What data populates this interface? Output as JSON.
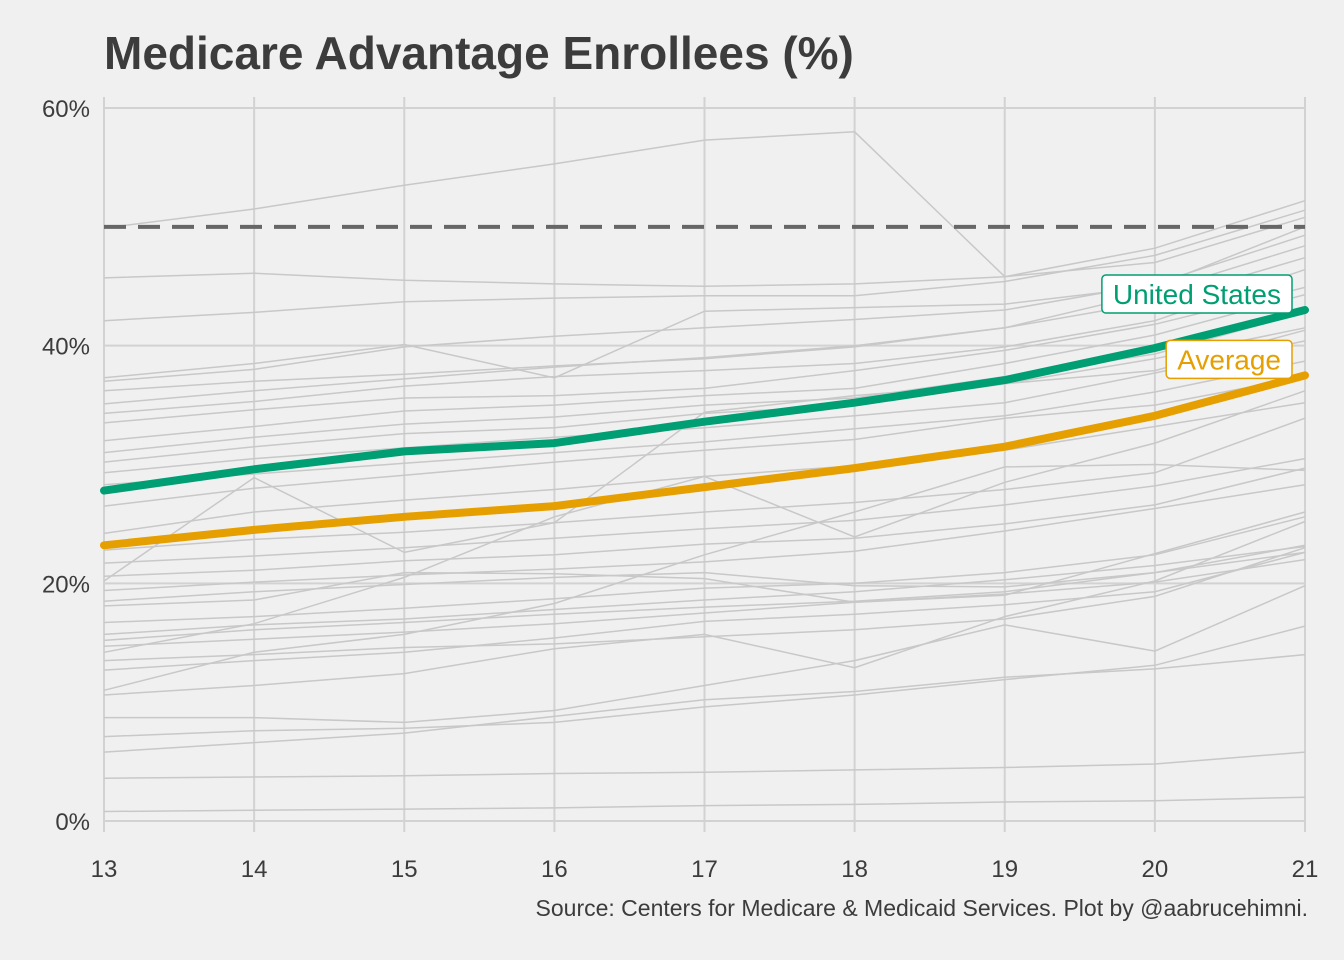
{
  "chart_data": {
    "type": "line",
    "title": "Medicare Advantage Enrollees (%)",
    "source": "Source: Centers for Medicare & Medicaid Services. Plot by @aabrucehimni.",
    "xlabel": "",
    "ylabel": "",
    "x": [
      13,
      14,
      15,
      16,
      17,
      18,
      19,
      20,
      21
    ],
    "x_tick_labels": [
      "13",
      "14",
      "15",
      "16",
      "17",
      "18",
      "19",
      "20",
      "21"
    ],
    "y_ticks": [
      0,
      20,
      40,
      60
    ],
    "y_tick_labels": [
      "0%",
      "20%",
      "40%",
      "60%"
    ],
    "xlim": [
      13,
      21
    ],
    "ylim": [
      0,
      60
    ],
    "grid": true,
    "reference_line": {
      "y": 50,
      "style": "dashed",
      "color": "#666666"
    },
    "highlight_series": [
      {
        "name": "United States",
        "color": "#009e73",
        "values": [
          27.8,
          29.6,
          31.1,
          31.8,
          33.6,
          35.2,
          37.1,
          39.8,
          43.0
        ]
      },
      {
        "name": "Average",
        "color": "#e69f00",
        "values": [
          23.2,
          24.5,
          25.6,
          26.5,
          28.1,
          29.7,
          31.5,
          34.1,
          37.5
        ]
      }
    ],
    "background_series_color": "#c8c8c8",
    "background_series": [
      [
        49.9,
        51.5,
        53.5,
        55.3,
        57.3,
        58.0,
        45.8,
        48.2,
        52.2
      ],
      [
        45.7,
        46.1,
        45.5,
        45.2,
        45.0,
        45.2,
        45.8,
        47.0,
        50.8
      ],
      [
        42.1,
        42.8,
        43.7,
        44.0,
        44.2,
        44.2,
        45.4,
        47.6,
        51.4
      ],
      [
        37.3,
        38.5,
        40.1,
        37.3,
        42.9,
        43.2,
        43.5,
        45.0,
        50.0
      ],
      [
        37.0,
        38.0,
        39.9,
        40.8,
        41.5,
        42.2,
        43.0,
        45.2,
        49.3
      ],
      [
        36.2,
        37.0,
        37.6,
        38.3,
        38.9,
        39.9,
        41.5,
        44.5,
        48.4
      ],
      [
        35.1,
        36.2,
        37.2,
        38.2,
        39.0,
        40.0,
        41.5,
        43.7,
        47.4
      ],
      [
        34.3,
        35.3,
        36.6,
        37.4,
        37.9,
        38.5,
        39.9,
        42.1,
        46.4
      ],
      [
        33.5,
        34.6,
        35.6,
        35.8,
        36.4,
        37.9,
        39.6,
        41.8,
        44.9
      ],
      [
        32.0,
        33.2,
        34.5,
        35.0,
        35.8,
        36.4,
        38.5,
        40.9,
        44.3
      ],
      [
        31.0,
        32.3,
        33.4,
        34.0,
        35.0,
        35.6,
        37.4,
        39.3,
        42.8
      ],
      [
        30.2,
        31.5,
        32.6,
        33.1,
        34.3,
        35.0,
        36.8,
        38.9,
        41.5
      ],
      [
        29.3,
        30.5,
        31.4,
        32.3,
        33.1,
        34.1,
        35.2,
        37.7,
        40.4
      ],
      [
        28.3,
        29.2,
        30.1,
        31.0,
        31.9,
        33.0,
        34.1,
        36.1,
        38.7
      ],
      [
        26.5,
        28.0,
        29.1,
        30.2,
        31.2,
        32.1,
        33.9,
        35.0,
        37.4
      ],
      [
        24.2,
        26.0,
        27.0,
        27.9,
        29.0,
        29.9,
        31.2,
        33.2,
        35.2
      ],
      [
        20.2,
        28.9,
        22.6,
        25.1,
        34.4,
        35.8,
        36.8,
        37.9,
        41.3
      ],
      [
        22.8,
        23.7,
        24.3,
        25.1,
        26.0,
        26.8,
        27.9,
        29.3,
        33.9
      ],
      [
        21.7,
        22.3,
        23.0,
        23.8,
        24.6,
        25.3,
        26.6,
        28.2,
        30.5
      ],
      [
        20.6,
        21.1,
        21.9,
        22.4,
        23.3,
        23.8,
        25.0,
        26.6,
        29.7
      ],
      [
        19.4,
        20.1,
        20.7,
        21.2,
        21.8,
        22.7,
        24.4,
        26.3,
        28.3
      ],
      [
        18.5,
        19.3,
        19.9,
        20.5,
        20.9,
        19.8,
        19.7,
        20.9,
        23.2
      ],
      [
        18.1,
        18.6,
        20.9,
        20.8,
        20.4,
        18.4,
        19.0,
        22.5,
        26.0
      ],
      [
        16.7,
        17.2,
        17.9,
        18.7,
        19.6,
        20.0,
        20.9,
        22.4,
        25.6
      ],
      [
        15.7,
        16.5,
        17.0,
        17.8,
        18.6,
        19.3,
        20.3,
        21.5,
        23.1
      ],
      [
        15.2,
        16.1,
        16.7,
        17.4,
        18.0,
        18.5,
        19.3,
        20.9,
        22.6
      ],
      [
        14.7,
        15.3,
        15.9,
        16.6,
        17.5,
        18.4,
        19.1,
        20.1,
        22.0
      ],
      [
        14.2,
        16.6,
        20.5,
        25.6,
        29.0,
        23.9,
        28.5,
        31.8,
        36.2
      ],
      [
        13.5,
        14.0,
        14.6,
        14.9,
        15.5,
        16.1,
        17.0,
        18.9,
        23.0
      ],
      [
        12.7,
        13.5,
        14.2,
        15.4,
        16.8,
        17.4,
        18.2,
        19.3,
        22.6
      ],
      [
        11.0,
        14.2,
        15.7,
        18.3,
        22.4,
        26.0,
        29.8,
        30.0,
        29.5
      ],
      [
        10.6,
        11.4,
        12.4,
        14.5,
        15.7,
        12.9,
        17.2,
        20.2,
        25.2
      ],
      [
        8.7,
        8.7,
        8.3,
        9.3,
        11.4,
        13.5,
        16.5,
        14.3,
        19.8
      ],
      [
        7.1,
        7.6,
        7.8,
        8.3,
        9.6,
        10.6,
        11.9,
        13.1,
        16.4
      ],
      [
        5.8,
        6.6,
        7.4,
        8.8,
        10.2,
        10.9,
        12.1,
        12.8,
        14.0
      ],
      [
        3.6,
        3.7,
        3.8,
        4.0,
        4.1,
        4.3,
        4.5,
        4.8,
        5.8
      ],
      [
        0.8,
        0.9,
        1.0,
        1.1,
        1.3,
        1.4,
        1.6,
        1.7,
        2.0
      ]
    ]
  }
}
